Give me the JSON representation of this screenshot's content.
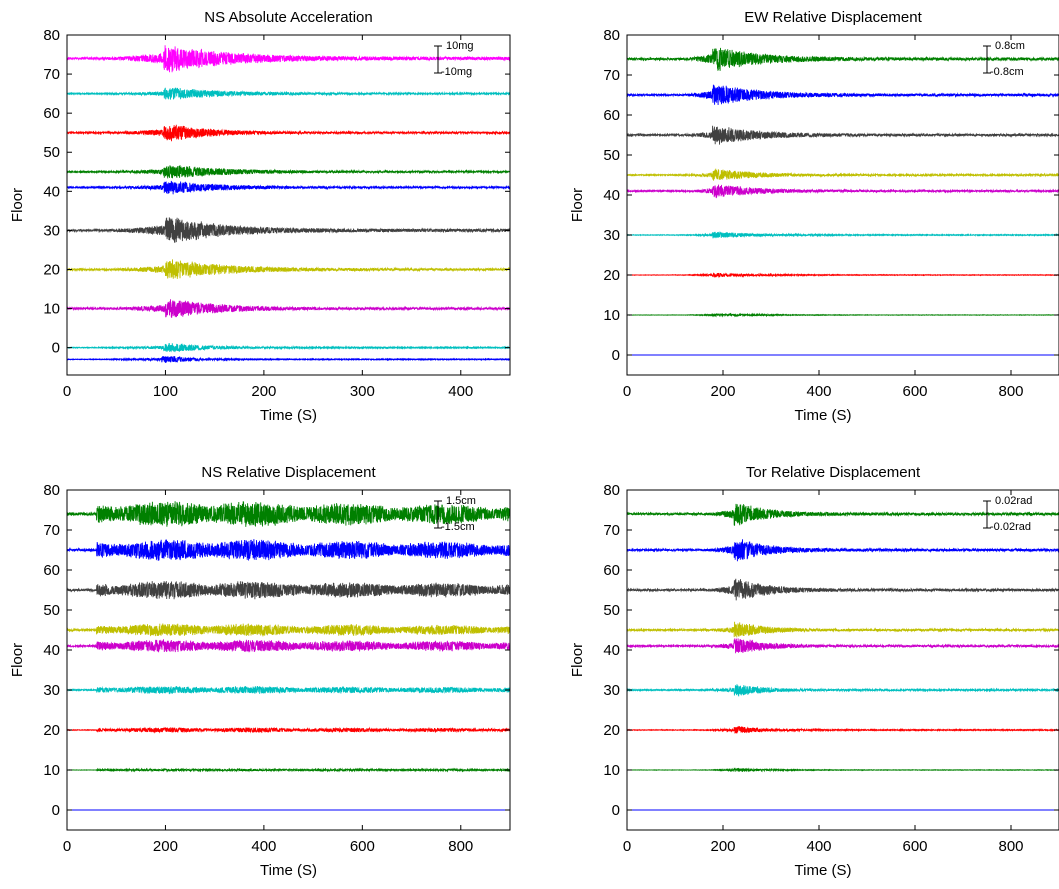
{
  "chart_data": [
    {
      "type": "line",
      "title": "NS Absolute Acceleration",
      "xlabel": "Time (S)",
      "ylabel": "Floor",
      "xlim": [
        0,
        450
      ],
      "ylim": [
        -7,
        80
      ],
      "xticks": [
        0,
        100,
        200,
        300,
        400
      ],
      "yticks": [
        0,
        10,
        20,
        30,
        40,
        50,
        60,
        70,
        80
      ],
      "scale_bar": {
        "top_label": "10mg",
        "bottom_label": "-10mg"
      },
      "series": [
        {
          "baseline": 74,
          "color": "#ff00ff",
          "peak_time": 110,
          "amplitude": 3.6,
          "decay": 60
        },
        {
          "baseline": 65,
          "color": "#00bfbf",
          "peak_time": 110,
          "amplitude": 1.6,
          "decay": 60
        },
        {
          "baseline": 55,
          "color": "#ff0000",
          "peak_time": 110,
          "amplitude": 2.2,
          "decay": 40
        },
        {
          "baseline": 45,
          "color": "#008000",
          "peak_time": 110,
          "amplitude": 1.8,
          "decay": 60
        },
        {
          "baseline": 41,
          "color": "#0000ff",
          "peak_time": 110,
          "amplitude": 1.8,
          "decay": 50
        },
        {
          "baseline": 30,
          "color": "#404040",
          "peak_time": 112,
          "amplitude": 3.5,
          "decay": 50
        },
        {
          "baseline": 20,
          "color": "#bfbf00",
          "peak_time": 112,
          "amplitude": 2.6,
          "decay": 55
        },
        {
          "baseline": 10,
          "color": "#cc00cc",
          "peak_time": 112,
          "amplitude": 2.6,
          "decay": 45
        },
        {
          "baseline": 0,
          "color": "#00bfbf",
          "peak_time": 110,
          "amplitude": 1.2,
          "decay": 40
        },
        {
          "baseline": -3,
          "color": "#0000ff",
          "peak_time": 108,
          "amplitude": 1.0,
          "decay": 20
        }
      ]
    },
    {
      "type": "line",
      "title": "EW Relative Displacement",
      "xlabel": "Time (S)",
      "ylabel": "Floor",
      "xlim": [
        0,
        900
      ],
      "ylim": [
        -5,
        80
      ],
      "xticks": [
        0,
        200,
        400,
        600,
        800
      ],
      "yticks": [
        0,
        10,
        20,
        30,
        40,
        50,
        60,
        70,
        80
      ],
      "scale_bar": {
        "top_label": "0.8cm",
        "bottom_label": "-0.8cm"
      },
      "series": [
        {
          "baseline": 74,
          "color": "#008000",
          "peak_time": 190,
          "amplitude": 3.2,
          "decay": 90
        },
        {
          "baseline": 65,
          "color": "#0000ff",
          "peak_time": 190,
          "amplitude": 2.8,
          "decay": 90
        },
        {
          "baseline": 55,
          "color": "#404040",
          "peak_time": 190,
          "amplitude": 2.5,
          "decay": 90
        },
        {
          "baseline": 45,
          "color": "#bfbf00",
          "peak_time": 190,
          "amplitude": 1.6,
          "decay": 90
        },
        {
          "baseline": 41,
          "color": "#cc00cc",
          "peak_time": 190,
          "amplitude": 1.8,
          "decay": 90
        },
        {
          "baseline": 30,
          "color": "#00bfbf",
          "peak_time": 190,
          "amplitude": 0.9,
          "decay": 80
        },
        {
          "baseline": 20,
          "color": "#ff0000",
          "peak_time": 190,
          "amplitude": 0.6,
          "decay": 80
        },
        {
          "baseline": 10,
          "color": "#008000",
          "peak_time": 190,
          "amplitude": 0.4,
          "decay": 80
        },
        {
          "baseline": 0,
          "color": "#0000ff",
          "peak_time": 190,
          "amplitude": 0.0,
          "decay": 80
        }
      ]
    },
    {
      "type": "line",
      "title": "NS Relative Displacement",
      "xlabel": "Time (S)",
      "ylabel": "Floor",
      "xlim": [
        0,
        900
      ],
      "ylim": [
        -5,
        80
      ],
      "xticks": [
        0,
        200,
        400,
        600,
        800
      ],
      "yticks": [
        0,
        10,
        20,
        30,
        40,
        50,
        60,
        70,
        80
      ],
      "scale_bar": {
        "top_label": "1.5cm",
        "bottom_label": "-1.5cm"
      },
      "series": [
        {
          "baseline": 74,
          "color": "#008000",
          "peak_time": 280,
          "amplitude": 3.6,
          "decay": 250
        },
        {
          "baseline": 65,
          "color": "#0000ff",
          "peak_time": 280,
          "amplitude": 3.0,
          "decay": 250
        },
        {
          "baseline": 55,
          "color": "#404040",
          "peak_time": 280,
          "amplitude": 2.5,
          "decay": 250
        },
        {
          "baseline": 45,
          "color": "#bfbf00",
          "peak_time": 280,
          "amplitude": 1.8,
          "decay": 250
        },
        {
          "baseline": 41,
          "color": "#cc00cc",
          "peak_time": 280,
          "amplitude": 1.8,
          "decay": 250
        },
        {
          "baseline": 30,
          "color": "#00bfbf",
          "peak_time": 280,
          "amplitude": 1.1,
          "decay": 250
        },
        {
          "baseline": 20,
          "color": "#ff0000",
          "peak_time": 280,
          "amplitude": 0.7,
          "decay": 250
        },
        {
          "baseline": 10,
          "color": "#008000",
          "peak_time": 280,
          "amplitude": 0.3,
          "decay": 250
        },
        {
          "baseline": 0,
          "color": "#0000ff",
          "peak_time": 280,
          "amplitude": 0.0,
          "decay": 250
        }
      ]
    },
    {
      "type": "line",
      "title": "Tor Relative Displacement",
      "xlabel": "Time (S)",
      "ylabel": "Floor",
      "xlim": [
        0,
        900
      ],
      "ylim": [
        -5,
        80
      ],
      "xticks": [
        0,
        200,
        400,
        600,
        800
      ],
      "yticks": [
        0,
        10,
        20,
        30,
        40,
        50,
        60,
        70,
        80
      ],
      "scale_bar": {
        "top_label": "0.02rad",
        "bottom_label": "-0.02rad"
      },
      "series": [
        {
          "baseline": 74,
          "color": "#008000",
          "peak_time": 235,
          "amplitude": 3.0,
          "decay": 60
        },
        {
          "baseline": 65,
          "color": "#0000ff",
          "peak_time": 235,
          "amplitude": 3.0,
          "decay": 60
        },
        {
          "baseline": 55,
          "color": "#404040",
          "peak_time": 235,
          "amplitude": 3.0,
          "decay": 60
        },
        {
          "baseline": 45,
          "color": "#bfbf00",
          "peak_time": 235,
          "amplitude": 2.2,
          "decay": 60
        },
        {
          "baseline": 41,
          "color": "#cc00cc",
          "peak_time": 235,
          "amplitude": 2.2,
          "decay": 60
        },
        {
          "baseline": 30,
          "color": "#00bfbf",
          "peak_time": 235,
          "amplitude": 1.6,
          "decay": 60
        },
        {
          "baseline": 20,
          "color": "#ff0000",
          "peak_time": 235,
          "amplitude": 1.0,
          "decay": 60
        },
        {
          "baseline": 10,
          "color": "#008000",
          "peak_time": 235,
          "amplitude": 0.5,
          "decay": 60
        },
        {
          "baseline": 0,
          "color": "#0000ff",
          "peak_time": 235,
          "amplitude": 0.0,
          "decay": 60
        }
      ]
    }
  ]
}
